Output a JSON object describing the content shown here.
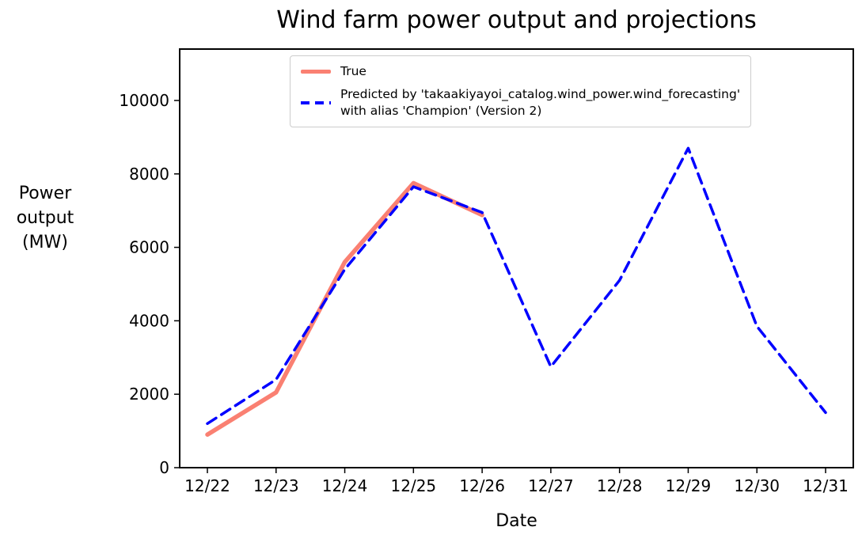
{
  "figure": {
    "background": "#ffffff"
  },
  "chart_data": {
    "type": "line",
    "title": "Wind farm power output and projections",
    "xlabel": "Date",
    "ylabel": "Power\noutput\n(MW)",
    "categories": [
      "12/22",
      "12/23",
      "12/24",
      "12/25",
      "12/26",
      "12/27",
      "12/28",
      "12/29",
      "12/30",
      "12/31"
    ],
    "yticks": [
      0,
      2000,
      4000,
      6000,
      8000,
      10000
    ],
    "ylim": [
      0,
      11400
    ],
    "grid": false,
    "legend_position": "upper center, inside axes",
    "series": [
      {
        "name": "True",
        "color": "#fa8072",
        "style": "solid",
        "line_width": 5.5,
        "x_indices": [
          0,
          1,
          2,
          3,
          4
        ],
        "values": [
          900,
          2050,
          5600,
          7750,
          6880
        ]
      },
      {
        "name": "Predicted by 'takaakiyayoi_catalog.wind_power.wind_forecasting'\nwith alias 'Champion' (Version 2)",
        "color": "#0000ff",
        "style": "dashed",
        "line_width": 3.5,
        "x_indices": [
          0,
          1,
          2,
          3,
          4,
          5,
          6,
          7,
          8,
          9
        ],
        "values": [
          1200,
          2400,
          5400,
          7650,
          6950,
          2750,
          5100,
          8700,
          3850,
          1500
        ]
      }
    ]
  }
}
